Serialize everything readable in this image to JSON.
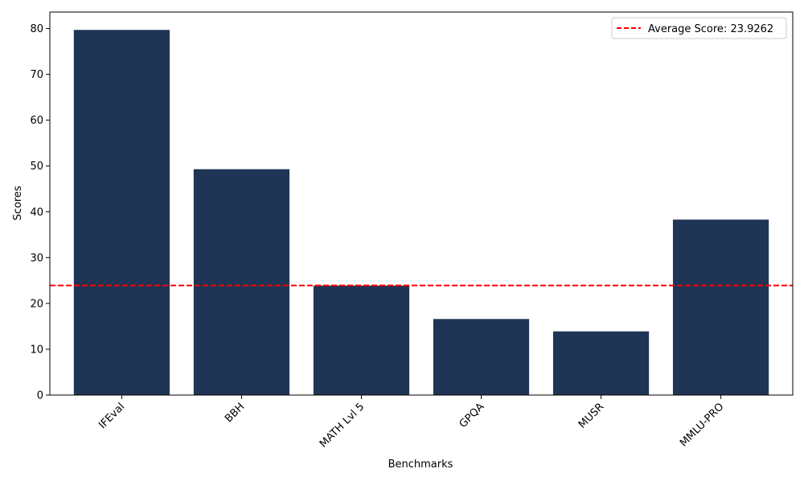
{
  "chart_data": {
    "type": "bar",
    "title": "",
    "xlabel": "Benchmarks",
    "ylabel": "Scores",
    "categories": [
      "IFEval",
      "BBH",
      "MATH Lvl 5",
      "GPQA",
      "MUSR",
      "MMLU-PRO"
    ],
    "values": [
      79.7,
      49.3,
      23.9,
      16.6,
      13.9,
      38.3
    ],
    "ylim": [
      0,
      83.6
    ],
    "yticks": [
      0,
      10,
      20,
      30,
      40,
      50,
      60,
      70,
      80
    ],
    "bar_color": "#1f3556",
    "reference_line": {
      "value": 23.9262,
      "label": "Average Score: 23.9262",
      "color": "#ff0000",
      "style": "dashed"
    },
    "legend": {
      "position": "top-right",
      "entries": [
        "Average Score: 23.9262"
      ]
    },
    "grid": false
  }
}
